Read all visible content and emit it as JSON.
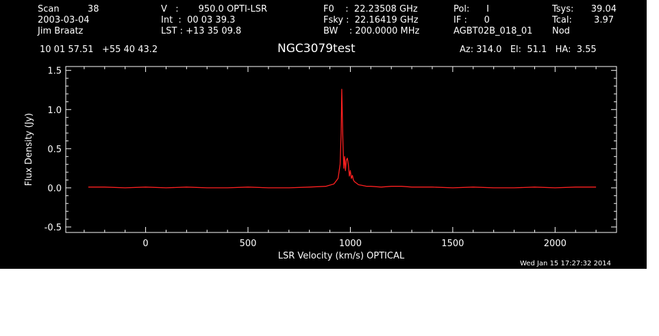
{
  "header": {
    "col1": [
      "Scan          38",
      "2003-03-04",
      "Jim Braatz"
    ],
    "col2": [
      "V   :       950.0 OPTI-LSR",
      "Int  :  00 03 39.3",
      "LST : +13 35 09.8"
    ],
    "col3": [
      "F0    :  22.23508 GHz",
      "Fsky :  22.16419 GHz",
      "BW    : 200.0000 MHz"
    ],
    "col4": [
      "Pol:      I",
      "IF :      0",
      "AGBT02B_018_01"
    ],
    "col5a": [
      "Tsys:",
      "Tcal:",
      "Nod"
    ],
    "col5b": [
      "39.04",
      "3.97",
      ""
    ],
    "coords": "10 01 57.51   +55 40 43.2",
    "title": "NGC3079test",
    "azelha": "Az: 314.0   El:  51.1   HA:  3.55"
  },
  "footer": {
    "timestamp": "Wed Jan 15 17:27:32 2014"
  },
  "colors": {
    "background": "#000000",
    "axes": "#ffffff",
    "trace": "#ff2020"
  },
  "chart_data": {
    "type": "line",
    "title": "NGC3079test",
    "xlabel": "LSR Velocity (km/s) OPTICAL",
    "ylabel": "Flux Density (Jy)",
    "xlim": [
      -390,
      2300
    ],
    "ylim": [
      -0.57,
      1.55
    ],
    "xticks": [
      0,
      500,
      1000,
      1500,
      2000
    ],
    "xtick_labels": [
      "0",
      "500",
      "1000",
      "1500",
      "2000"
    ],
    "yticks": [
      -0.5,
      0.0,
      0.5,
      1.0,
      1.5
    ],
    "ytick_labels": [
      "-0.5",
      "0.0",
      "0.5",
      "1.0",
      "1.5"
    ],
    "series": [
      {
        "name": "",
        "x": [
          -280,
          -200,
          -100,
          0,
          100,
          200,
          300,
          400,
          500,
          600,
          700,
          800,
          880,
          920,
          940,
          950,
          955,
          958,
          961,
          964,
          968,
          972,
          976,
          980,
          985,
          990,
          995,
          1000,
          1005,
          1010,
          1015,
          1020,
          1030,
          1040,
          1060,
          1080,
          1100,
          1150,
          1200,
          1250,
          1300,
          1400,
          1500,
          1600,
          1700,
          1800,
          1900,
          2000,
          2100,
          2200
        ],
        "y": [
          0.01,
          0.01,
          0.0,
          0.01,
          0.0,
          0.01,
          0.0,
          0.0,
          0.01,
          0.0,
          0.0,
          0.01,
          0.02,
          0.05,
          0.12,
          0.3,
          0.7,
          1.26,
          0.9,
          0.55,
          0.25,
          0.4,
          0.22,
          0.35,
          0.38,
          0.3,
          0.15,
          0.22,
          0.12,
          0.16,
          0.1,
          0.08,
          0.06,
          0.04,
          0.03,
          0.02,
          0.02,
          0.01,
          0.02,
          0.02,
          0.01,
          0.01,
          0.0,
          0.01,
          0.0,
          0.0,
          0.01,
          0.0,
          0.01,
          0.01
        ]
      }
    ]
  }
}
